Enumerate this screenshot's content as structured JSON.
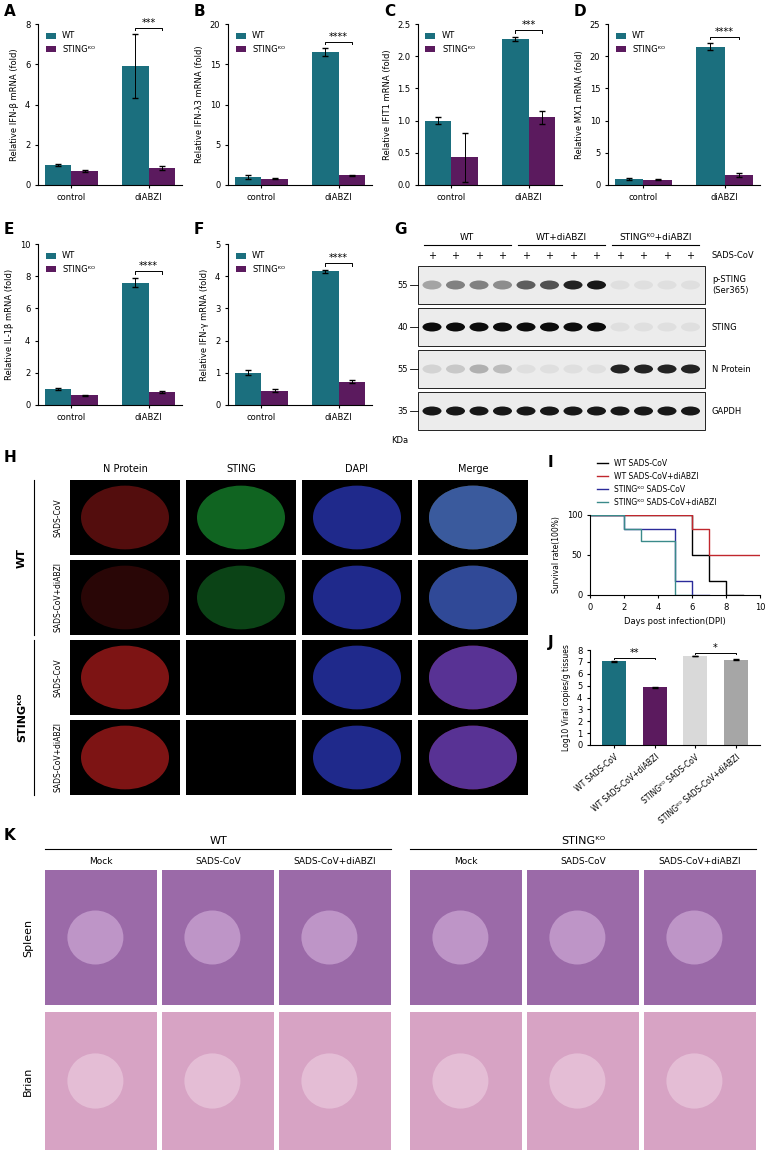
{
  "chart_data": [
    {
      "panel": "A",
      "type": "bar",
      "categories": [
        "control",
        "diABZI"
      ],
      "series": [
        {
          "name": "WT",
          "color": "#1b6f7e",
          "values": [
            1.0,
            5.9
          ],
          "errors": [
            0.06,
            1.6
          ]
        },
        {
          "name": "STINGᴷᴼ",
          "color": "#5b1a5e",
          "values": [
            0.7,
            0.85
          ],
          "errors": [
            0.04,
            0.08
          ]
        }
      ],
      "y_label": "Relative IFN-β mRNA (fold)",
      "ylim": [
        0,
        8
      ],
      "yticks": [
        0,
        2,
        4,
        6,
        8
      ],
      "legend": "upper left",
      "significance": [
        {
          "category": "diABZI",
          "text": "***"
        }
      ]
    },
    {
      "panel": "B",
      "type": "bar",
      "categories": [
        "control",
        "diABZI"
      ],
      "series": [
        {
          "name": "WT",
          "color": "#1b6f7e",
          "values": [
            1.0,
            16.5
          ],
          "errors": [
            0.2,
            0.5
          ]
        },
        {
          "name": "STINGᴷᴼ",
          "color": "#5b1a5e",
          "values": [
            0.8,
            1.2
          ],
          "errors": [
            0.1,
            0.1
          ]
        }
      ],
      "y_label": "Relative IFN-λ3 mRNA (fold)",
      "ylim": [
        0,
        20
      ],
      "yticks": [
        0,
        5,
        10,
        15,
        20
      ],
      "legend": "upper left",
      "significance": [
        {
          "category": "diABZI",
          "text": "****"
        }
      ]
    },
    {
      "panel": "C",
      "type": "bar",
      "categories": [
        "control",
        "diABZI"
      ],
      "series": [
        {
          "name": "WT",
          "color": "#1b6f7e",
          "values": [
            1.0,
            2.27
          ],
          "errors": [
            0.06,
            0.03
          ]
        },
        {
          "name": "STINGᴷᴼ",
          "color": "#5b1a5e",
          "values": [
            0.43,
            1.05
          ],
          "errors": [
            0.38,
            0.1
          ]
        }
      ],
      "y_label": "Relative IFIT1 mRNA (fold)",
      "ylim": [
        0,
        2.5
      ],
      "yticks": [
        {
          "value": 0,
          "label": "0.0"
        },
        0.5,
        {
          "value": 1,
          "label": "1.0"
        },
        1.5,
        {
          "value": 2,
          "label": "2.0"
        },
        2.5
      ],
      "legend": "upper left",
      "significance": [
        {
          "category": "diABZI",
          "text": "***"
        }
      ]
    },
    {
      "panel": "D",
      "type": "bar",
      "categories": [
        "control",
        "diABZI"
      ],
      "series": [
        {
          "name": "WT",
          "color": "#1b6f7e",
          "values": [
            1.0,
            21.5
          ],
          "errors": [
            0.15,
            0.5
          ]
        },
        {
          "name": "STINGᴷᴼ",
          "color": "#5b1a5e",
          "values": [
            0.8,
            1.5
          ],
          "errors": [
            0.1,
            0.3
          ]
        }
      ],
      "y_label": "Relative MX1 mRNA (fold)",
      "ylim": [
        0,
        25
      ],
      "yticks": [
        0,
        5,
        10,
        15,
        20,
        25
      ],
      "legend": "upper left",
      "significance": [
        {
          "category": "diABZI",
          "text": "****"
        }
      ]
    },
    {
      "panel": "E",
      "type": "bar",
      "categories": [
        "control",
        "diABZI"
      ],
      "series": [
        {
          "name": "WT",
          "color": "#1b6f7e",
          "values": [
            1.0,
            7.6
          ],
          "errors": [
            0.05,
            0.3
          ]
        },
        {
          "name": "STINGᴷᴼ",
          "color": "#5b1a5e",
          "values": [
            0.6,
            0.8
          ],
          "errors": [
            0.03,
            0.05
          ]
        }
      ],
      "y_label": "Relative IL-1β mRNA (fold)",
      "ylim": [
        0,
        10
      ],
      "yticks": [
        0,
        2,
        4,
        6,
        8,
        10
      ],
      "legend": "upper left",
      "significance": [
        {
          "category": "diABZI",
          "text": "****"
        }
      ]
    },
    {
      "panel": "F",
      "type": "bar",
      "categories": [
        "control",
        "diABZI"
      ],
      "series": [
        {
          "name": "WT",
          "color": "#1b6f7e",
          "values": [
            1.0,
            4.15
          ],
          "errors": [
            0.08,
            0.05
          ]
        },
        {
          "name": "STINGᴷᴼ",
          "color": "#5b1a5e",
          "values": [
            0.45,
            0.72
          ],
          "errors": [
            0.05,
            0.05
          ]
        }
      ],
      "y_label": "Relative IFN-γ mRNA (fold)",
      "ylim": [
        0,
        5
      ],
      "yticks": [
        0,
        1,
        2,
        3,
        4,
        5
      ],
      "legend": "upper left",
      "significance": [
        {
          "category": "diABZI",
          "text": "****"
        }
      ]
    },
    {
      "panel": "I",
      "type": "line",
      "line_style": "steps",
      "legend": "top",
      "x": [
        0,
        1,
        2,
        3,
        4,
        5,
        6,
        7,
        8,
        9,
        10
      ],
      "series": [
        {
          "name": "WT SADS-CoV",
          "color": "#000000",
          "values": [
            100,
            100,
            100,
            100,
            100,
            100,
            50,
            17,
            0,
            null,
            null
          ]
        },
        {
          "name": "WT SADS-CoV+diABZI",
          "color": "#c0272d",
          "values": [
            100,
            100,
            100,
            100,
            100,
            100,
            83,
            50,
            50,
            50,
            50
          ]
        },
        {
          "name": "STINGᴷᴼ SADS-CoV",
          "color": "#2b2b9a",
          "values": [
            100,
            100,
            83,
            83,
            83,
            17,
            0,
            null,
            null,
            null,
            null
          ]
        },
        {
          "name": "STINGᴷᴼ SADS-CoV+diABZI",
          "color": "#3a8a8a",
          "values": [
            100,
            100,
            83,
            67,
            67,
            0,
            null,
            null,
            null,
            null,
            null
          ]
        }
      ],
      "x_label": "Days post infection(DPI)",
      "y_label": "Survival rate(100%)",
      "xlim": [
        0,
        10
      ],
      "xticks": [
        0,
        2,
        4,
        6,
        8,
        10
      ],
      "ylim": [
        0,
        100
      ],
      "yticks": [
        0,
        50,
        100
      ]
    },
    {
      "panel": "J",
      "type": "bar",
      "categories": [
        "WT SADS-CoV",
        "WT SADS-CoV+diABZI",
        "STINGᴷᴼ SADS-CoV",
        "STINGᴷᴼ SADS-CoV+diABZI"
      ],
      "values": [
        7.05,
        4.85,
        7.5,
        7.2
      ],
      "errors": [
        0.05,
        0.05,
        0.03,
        0.08
      ],
      "colors": [
        "#1b6f7e",
        "#5b1a5e",
        "#d9d9d9",
        "#a6a6a6"
      ],
      "y_label": "Log10 Viral copies/g tissues",
      "ylim": [
        0,
        8
      ],
      "yticks": [
        0,
        1,
        2,
        3,
        4,
        5,
        6,
        7,
        8
      ],
      "significance": [
        {
          "between": [
            "WT SADS-CoV",
            "WT SADS-CoV+diABZI"
          ],
          "text": "**"
        },
        {
          "between": [
            "STINGᴷᴼ SADS-CoV",
            "STINGᴷᴼ SADS-CoV+diABZI"
          ],
          "text": "*"
        }
      ]
    }
  ],
  "western_blot": {
    "panel": "G",
    "groups": [
      {
        "label": "WT",
        "lanes": 4
      },
      {
        "label": "WT+diABZI",
        "lanes": 4
      },
      {
        "label": "STINGᴷᴼ+diABZI",
        "lanes": 4
      }
    ],
    "lane_marks": [
      "+",
      "+",
      "+",
      "+",
      "+",
      "+",
      "+",
      "+",
      "+",
      "+",
      "+",
      "+"
    ],
    "treatment": "SADS-CoV",
    "rows": [
      {
        "label": "p-STING\n(Ser365)",
        "intensity": [
          0.3,
          0.45,
          0.45,
          0.4,
          0.6,
          0.65,
          0.85,
          0.9,
          0.05,
          0.05,
          0.05,
          0.05
        ]
      },
      {
        "label": "STING",
        "intensity": [
          0.95,
          0.95,
          0.95,
          0.95,
          0.95,
          0.95,
          0.95,
          0.95,
          0.05,
          0.05,
          0.05,
          0.05
        ]
      },
      {
        "label": "N Protein",
        "intensity": [
          0.1,
          0.15,
          0.25,
          0.2,
          0.05,
          0.05,
          0.05,
          0.05,
          0.85,
          0.85,
          0.85,
          0.85
        ]
      },
      {
        "label": "GAPDH",
        "intensity": [
          0.9,
          0.9,
          0.9,
          0.9,
          0.9,
          0.9,
          0.9,
          0.9,
          0.9,
          0.9,
          0.9,
          0.9
        ]
      }
    ],
    "mw_markers": [
      55,
      40,
      55,
      35
    ],
    "mw_unit": "KDa"
  },
  "immunofluorescence": {
    "panel": "H",
    "columns": [
      "N Protein",
      "STING",
      "DAPI",
      "Merge"
    ],
    "groups": [
      {
        "label": "WT",
        "rows": [
          "SADS-CoV",
          "SADS-CoV+diABZI"
        ]
      },
      {
        "label": "STINGᴷᴼ",
        "rows": [
          "SADS-CoV",
          "SADS-CoV+diABZI"
        ]
      }
    ],
    "signal": [
      [
        0.6,
        0.9,
        1.0,
        1.0
      ],
      [
        0.3,
        0.6,
        1.0,
        1.0
      ],
      [
        0.9,
        0.0,
        1.0,
        1.0
      ],
      [
        0.9,
        0.0,
        1.0,
        1.0
      ]
    ]
  },
  "histology": {
    "panel": "K",
    "groups": [
      {
        "label": "WT",
        "columns": [
          "Mock",
          "SADS-CoV",
          "SADS-CoV+diABZI"
        ]
      },
      {
        "label": "STINGᴷᴼ",
        "columns": [
          "Mock",
          "SADS-CoV",
          "SADS-CoV+diABZI"
        ]
      }
    ],
    "rows": [
      "Spleen",
      "Brian"
    ]
  }
}
